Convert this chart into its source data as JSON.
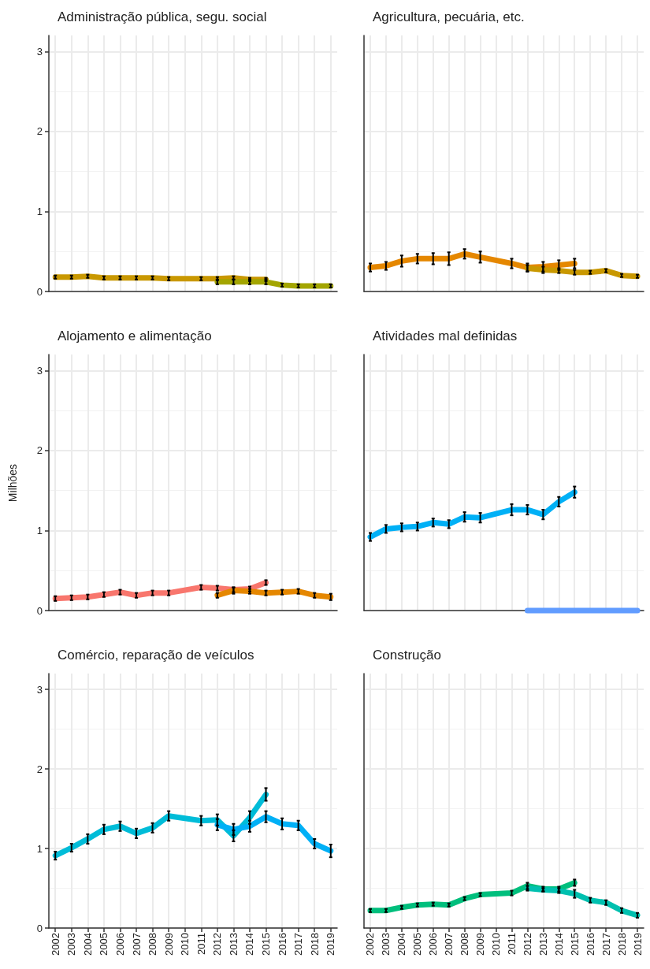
{
  "chart_data": [
    {
      "type": "line",
      "title": "Administração pública, segu. social",
      "xlim": [
        2001.6,
        2019.4
      ],
      "xticks": [
        2002,
        2003,
        2004,
        2005,
        2006,
        2007,
        2008,
        2009,
        2010,
        2011,
        2012,
        2013,
        2014,
        2015,
        2016,
        2017,
        2018,
        2019
      ],
      "ylim": [
        0,
        3.2
      ],
      "yticks": [
        0,
        1,
        2,
        3
      ],
      "grid": true,
      "tick_labels": "y",
      "series": [
        {
          "color": "#c99800",
          "x": [
            2002,
            2003,
            2004,
            2005,
            2006,
            2007,
            2008,
            2009,
            2011,
            2012,
            2013,
            2014,
            2015
          ],
          "values": [
            0.18,
            0.18,
            0.19,
            0.17,
            0.17,
            0.17,
            0.17,
            0.16,
            0.16,
            0.16,
            0.17,
            0.15,
            0.15
          ],
          "errors": [
            0.02,
            0.02,
            0.02,
            0.02,
            0.02,
            0.02,
            0.02,
            0.02,
            0.02,
            0.02,
            0.02,
            0.02,
            0.02
          ]
        },
        {
          "color": "#a3a500",
          "x": [
            2012,
            2013,
            2014,
            2015,
            2016,
            2017,
            2018,
            2019
          ],
          "values": [
            0.12,
            0.12,
            0.12,
            0.12,
            0.08,
            0.07,
            0.07,
            0.07
          ],
          "errors": [
            0.03,
            0.03,
            0.03,
            0.03,
            0.02,
            0.02,
            0.02,
            0.02
          ]
        }
      ]
    },
    {
      "type": "line",
      "title": "Agricultura, pecuária, etc.",
      "xlim": [
        2001.6,
        2019.4
      ],
      "xticks": [
        2002,
        2003,
        2004,
        2005,
        2006,
        2007,
        2008,
        2009,
        2010,
        2011,
        2012,
        2013,
        2014,
        2015,
        2016,
        2017,
        2018,
        2019
      ],
      "ylim": [
        0,
        3.2
      ],
      "yticks": [
        0,
        1,
        2,
        3
      ],
      "grid": true,
      "tick_labels": false,
      "series": [
        {
          "color": "#e58700",
          "x": [
            2002,
            2003,
            2004,
            2005,
            2006,
            2007,
            2008,
            2009,
            2011,
            2012,
            2013,
            2014,
            2015
          ],
          "values": [
            0.3,
            0.32,
            0.38,
            0.41,
            0.41,
            0.41,
            0.47,
            0.43,
            0.35,
            0.3,
            0.31,
            0.33,
            0.35
          ],
          "errors": [
            0.05,
            0.05,
            0.07,
            0.06,
            0.07,
            0.08,
            0.06,
            0.07,
            0.06,
            0.05,
            0.06,
            0.06,
            0.06
          ]
        },
        {
          "color": "#c99800",
          "x": [
            2012,
            2013,
            2014,
            2015,
            2016,
            2017,
            2018,
            2019
          ],
          "values": [
            0.29,
            0.27,
            0.26,
            0.24,
            0.24,
            0.26,
            0.2,
            0.19
          ],
          "errors": [
            0.04,
            0.04,
            0.03,
            0.03,
            0.02,
            0.02,
            0.02,
            0.02
          ]
        }
      ]
    },
    {
      "type": "line",
      "title": "Alojamento e alimentação",
      "ylabel": "Milhões",
      "xlim": [
        2001.6,
        2019.4
      ],
      "xticks": [
        2002,
        2003,
        2004,
        2005,
        2006,
        2007,
        2008,
        2009,
        2010,
        2011,
        2012,
        2013,
        2014,
        2015,
        2016,
        2017,
        2018,
        2019
      ],
      "ylim": [
        0,
        3.2
      ],
      "yticks": [
        0,
        1,
        2,
        3
      ],
      "grid": true,
      "tick_labels": "y",
      "series": [
        {
          "color": "#f8766d",
          "x": [
            2002,
            2003,
            2004,
            2005,
            2006,
            2007,
            2008,
            2009,
            2011,
            2012,
            2013,
            2014,
            2015
          ],
          "values": [
            0.15,
            0.16,
            0.17,
            0.2,
            0.23,
            0.19,
            0.22,
            0.22,
            0.29,
            0.28,
            0.26,
            0.27,
            0.35
          ],
          "errors": [
            0.03,
            0.03,
            0.03,
            0.03,
            0.03,
            0.03,
            0.03,
            0.03,
            0.03,
            0.03,
            0.03,
            0.03,
            0.03
          ]
        },
        {
          "color": "#e58700",
          "x": [
            2012,
            2013,
            2014,
            2015,
            2016,
            2017,
            2018,
            2019
          ],
          "values": [
            0.19,
            0.25,
            0.24,
            0.22,
            0.23,
            0.24,
            0.19,
            0.17
          ],
          "errors": [
            0.03,
            0.04,
            0.03,
            0.03,
            0.03,
            0.03,
            0.03,
            0.04
          ]
        }
      ]
    },
    {
      "type": "line",
      "title": "Atividades mal definidas",
      "xlim": [
        2001.6,
        2019.4
      ],
      "xticks": [
        2002,
        2003,
        2004,
        2005,
        2006,
        2007,
        2008,
        2009,
        2010,
        2011,
        2012,
        2013,
        2014,
        2015,
        2016,
        2017,
        2018,
        2019
      ],
      "ylim": [
        0,
        3.2
      ],
      "yticks": [
        0,
        1,
        2,
        3
      ],
      "grid": true,
      "tick_labels": false,
      "series": [
        {
          "color": "#00b0f6",
          "x": [
            2002,
            2003,
            2004,
            2005,
            2006,
            2007,
            2008,
            2009,
            2011,
            2012,
            2013,
            2014,
            2015
          ],
          "values": [
            0.92,
            1.02,
            1.04,
            1.05,
            1.1,
            1.08,
            1.17,
            1.16,
            1.26,
            1.26,
            1.2,
            1.36,
            1.48
          ],
          "errors": [
            0.05,
            0.05,
            0.05,
            0.05,
            0.05,
            0.05,
            0.06,
            0.06,
            0.07,
            0.06,
            0.06,
            0.06,
            0.07
          ]
        },
        {
          "color": "#619cff",
          "x": [
            2012,
            2013,
            2014,
            2015,
            2016,
            2017,
            2018,
            2019
          ],
          "values": [
            0,
            0,
            0,
            0,
            0,
            0,
            0,
            0
          ]
        }
      ]
    },
    {
      "type": "line",
      "title": "Comércio, reparação de veículos",
      "xlim": [
        2001.6,
        2019.4
      ],
      "xticks": [
        2002,
        2003,
        2004,
        2005,
        2006,
        2007,
        2008,
        2009,
        2010,
        2011,
        2012,
        2013,
        2014,
        2015,
        2016,
        2017,
        2018,
        2019
      ],
      "ylim": [
        0,
        3.2
      ],
      "yticks": [
        0,
        1,
        2,
        3
      ],
      "grid": true,
      "series": [
        {
          "color": "#00bcd8",
          "x": [
            2002,
            2003,
            2004,
            2005,
            2006,
            2007,
            2008,
            2009,
            2011,
            2012,
            2013,
            2014,
            2015
          ],
          "values": [
            0.91,
            1.01,
            1.12,
            1.24,
            1.28,
            1.19,
            1.26,
            1.41,
            1.35,
            1.36,
            1.16,
            1.39,
            1.68
          ],
          "errors": [
            0.05,
            0.05,
            0.06,
            0.06,
            0.06,
            0.06,
            0.06,
            0.06,
            0.06,
            0.07,
            0.07,
            0.08,
            0.08
          ]
        },
        {
          "color": "#00b0f6",
          "x": [
            2012,
            2013,
            2014,
            2015,
            2016,
            2017,
            2018,
            2019
          ],
          "values": [
            1.3,
            1.24,
            1.28,
            1.4,
            1.31,
            1.29,
            1.06,
            0.97
          ],
          "errors": [
            0.07,
            0.07,
            0.07,
            0.07,
            0.07,
            0.06,
            0.06,
            0.08
          ]
        }
      ]
    },
    {
      "type": "line",
      "title": "Construção",
      "xlim": [
        2001.6,
        2019.4
      ],
      "xticks": [
        2002,
        2003,
        2004,
        2005,
        2006,
        2007,
        2008,
        2009,
        2010,
        2011,
        2012,
        2013,
        2014,
        2015,
        2016,
        2017,
        2018,
        2019
      ],
      "ylim": [
        0,
        3.2
      ],
      "yticks": [
        0,
        1,
        2,
        3
      ],
      "grid": true,
      "tick_labels": "x",
      "series": [
        {
          "color": "#00bf7d",
          "x": [
            2002,
            2003,
            2004,
            2005,
            2006,
            2007,
            2008,
            2009,
            2011,
            2012,
            2013,
            2014,
            2015
          ],
          "values": [
            0.22,
            0.22,
            0.26,
            0.29,
            0.3,
            0.29,
            0.37,
            0.42,
            0.44,
            0.53,
            0.49,
            0.49,
            0.57
          ],
          "errors": [
            0.02,
            0.02,
            0.02,
            0.02,
            0.02,
            0.02,
            0.02,
            0.02,
            0.03,
            0.04,
            0.03,
            0.03,
            0.04
          ]
        },
        {
          "color": "#00c0af",
          "x": [
            2012,
            2013,
            2014,
            2015,
            2016,
            2017,
            2018,
            2019
          ],
          "values": [
            0.5,
            0.48,
            0.47,
            0.43,
            0.35,
            0.32,
            0.22,
            0.16
          ],
          "errors": [
            0.03,
            0.02,
            0.03,
            0.05,
            0.03,
            0.03,
            0.03,
            0.03
          ]
        }
      ]
    }
  ]
}
